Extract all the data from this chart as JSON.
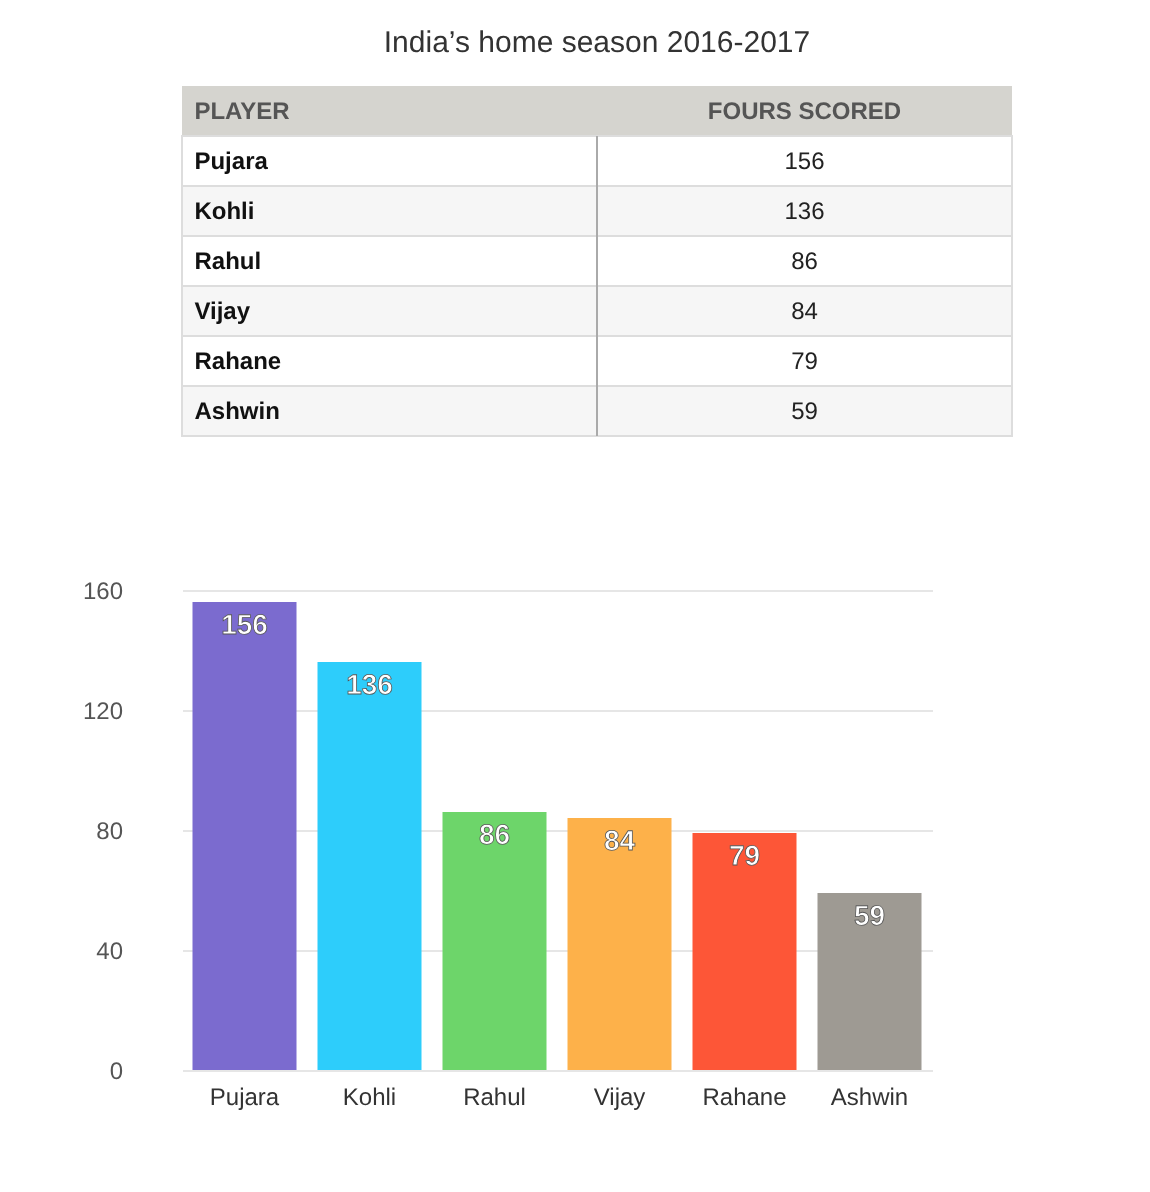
{
  "chart_data": [
    {
      "type": "other",
      "title": "India’s home season 2016-2017",
      "annotations": [
        "PLAYER",
        "FOURS SCORED",
        "Pujara",
        "156",
        "Kohli",
        "136",
        "Rahul",
        "86",
        "Vijay",
        "84",
        "Rahane",
        "79",
        "Ashwin",
        "59"
      ]
    },
    {
      "type": "bar",
      "categories": [
        "Pujara",
        "Kohli",
        "Rahul",
        "Vijay",
        "Rahane",
        "Ashwin"
      ],
      "values": [
        156,
        136,
        86,
        84,
        79,
        59
      ],
      "colors": [
        "#7b6bcf",
        "#2dcdfb",
        "#6dd56a",
        "#fdb14a",
        "#fd5637",
        "#9e9a93"
      ],
      "ylim": [
        0,
        160
      ],
      "yticks": [
        0,
        40,
        80,
        120,
        160
      ],
      "grid": "y",
      "data_labels": true
    }
  ]
}
